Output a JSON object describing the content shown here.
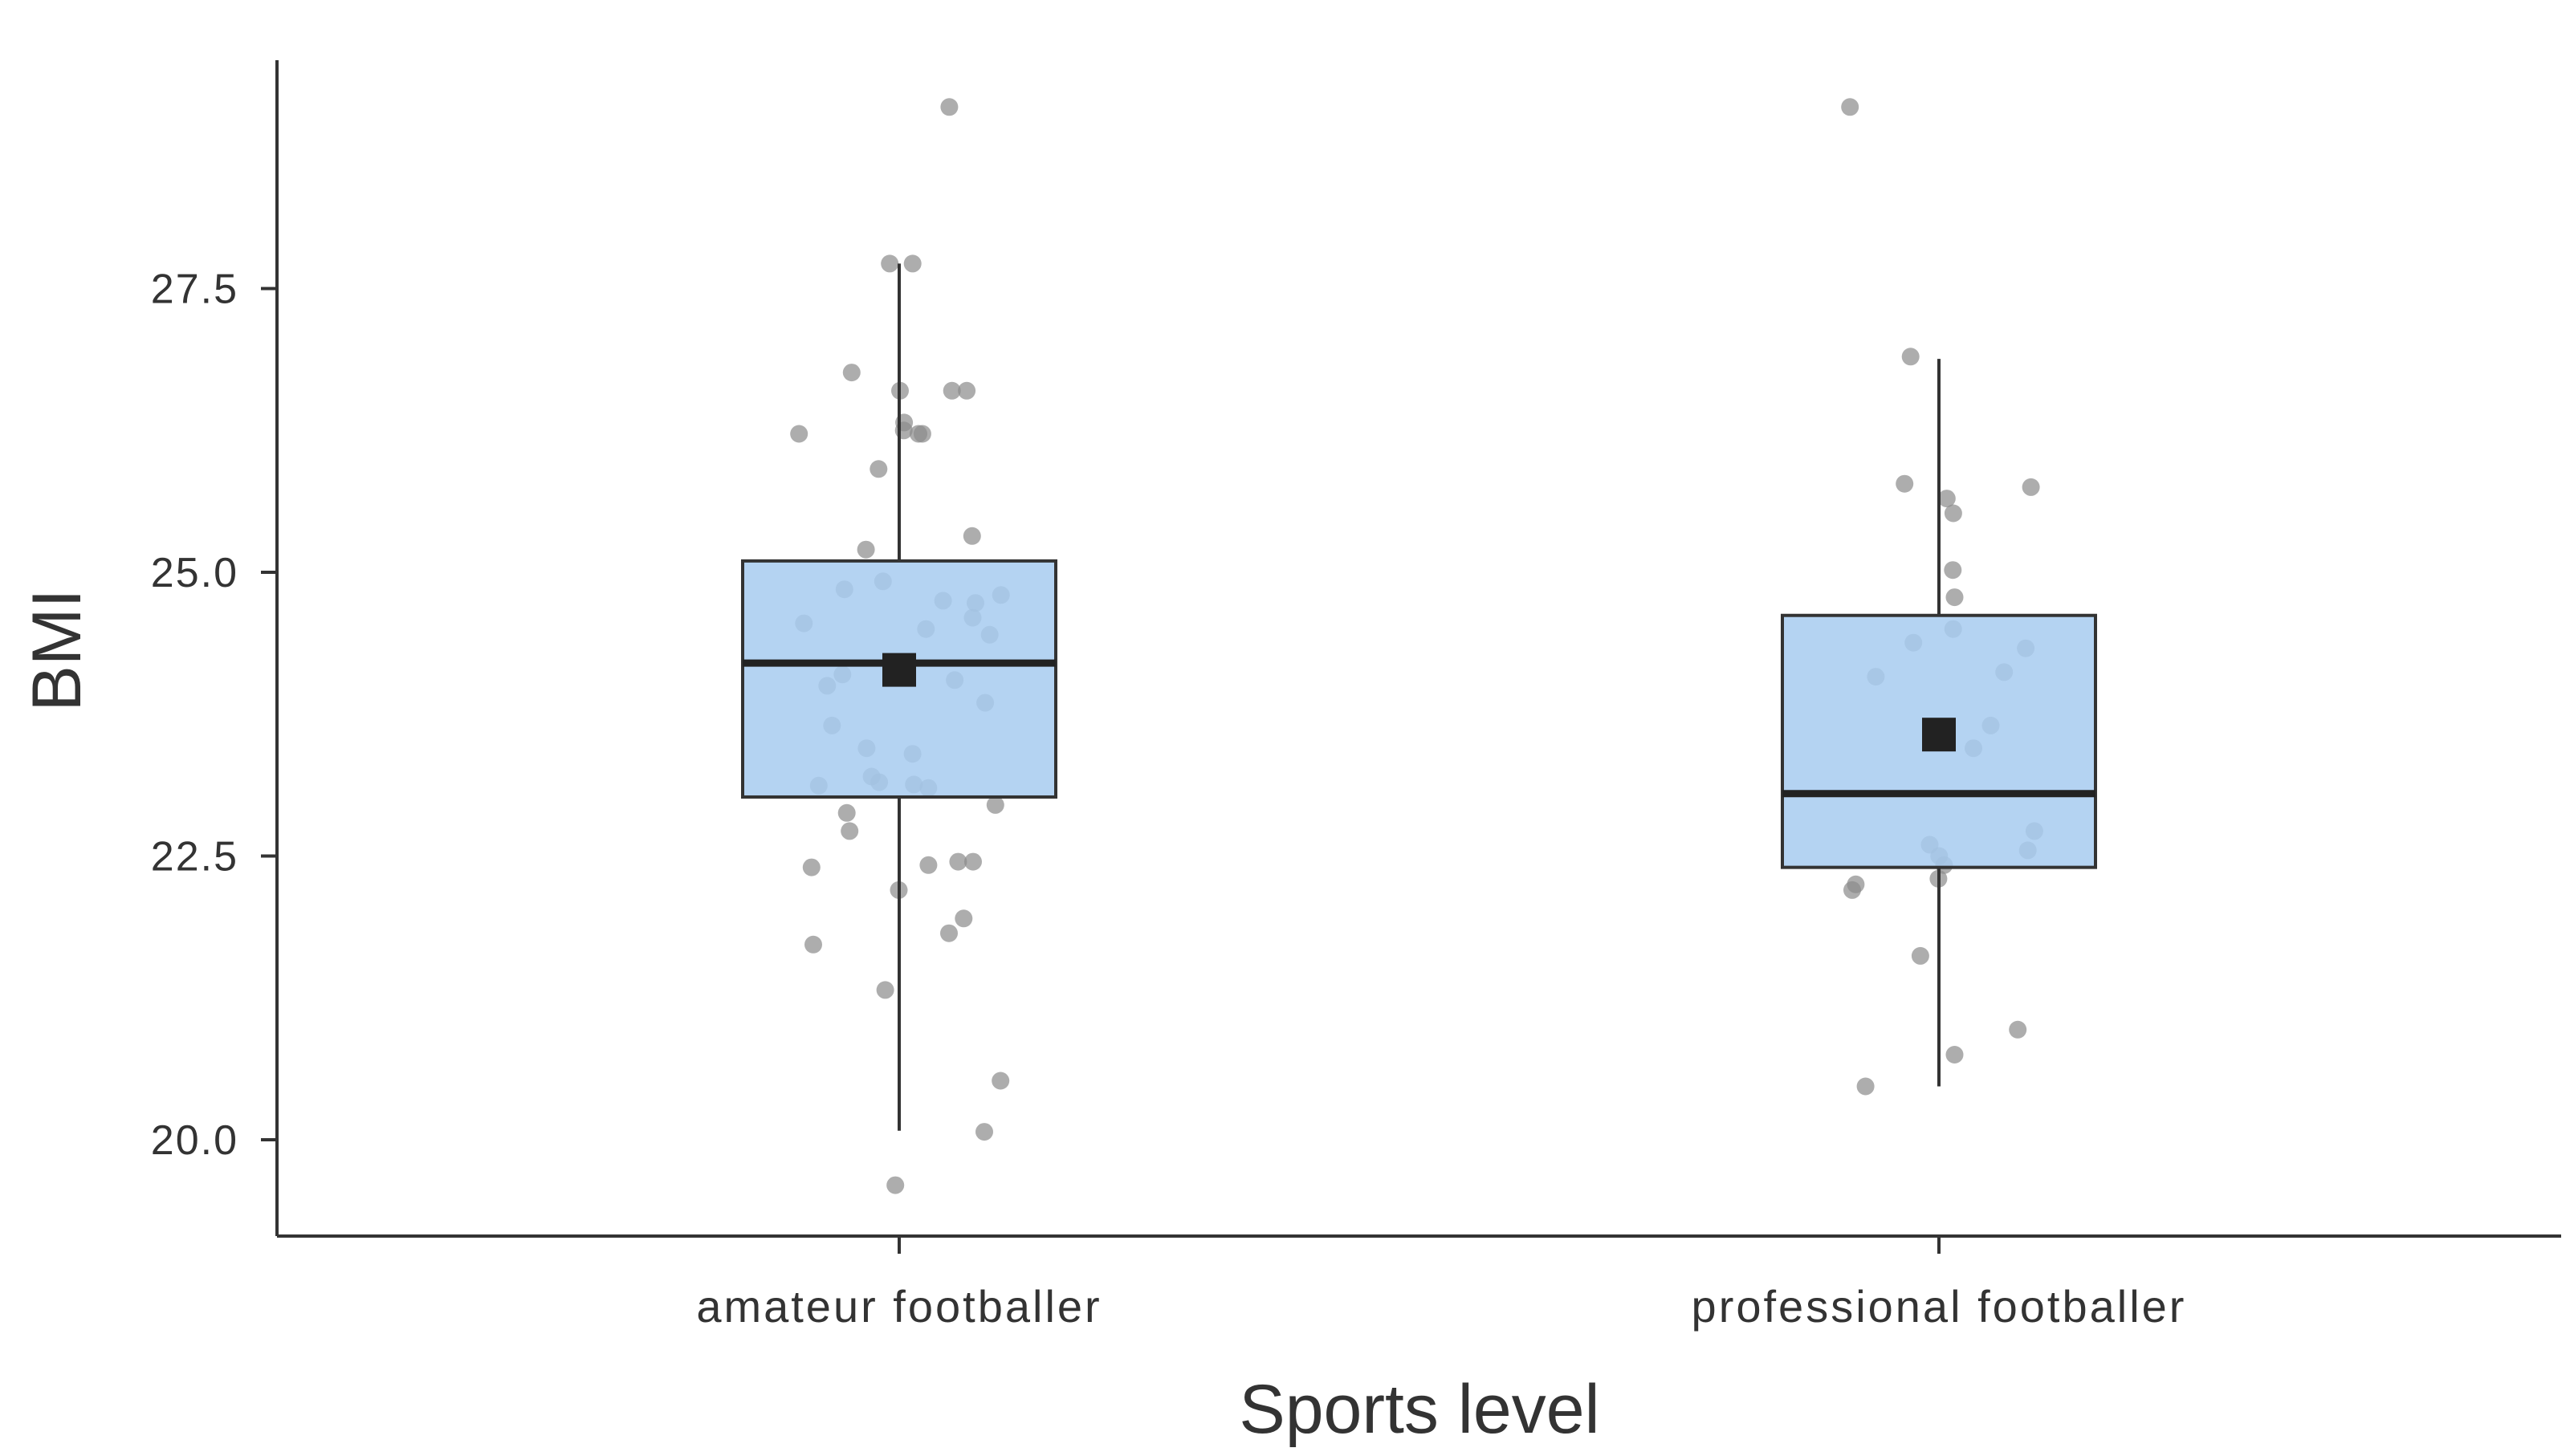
{
  "chart_data": {
    "type": "box",
    "xlabel": "Sports level",
    "ylabel": "BMI",
    "ylim": [
      19.6,
      29.4
    ],
    "yticks": [
      20.0,
      22.5,
      25.0,
      27.5
    ],
    "ytick_labels": [
      "20.0",
      "22.5",
      "25.0",
      "27.5"
    ],
    "categories": [
      "amateur footballer",
      "professional footballer"
    ],
    "grid": false,
    "legend": "none",
    "colors": {
      "box_fill": "#a7cbf0",
      "box_stroke": "#333333",
      "median": "#222222",
      "mean_marker": "#222222",
      "points": "#8a8a8a",
      "axis": "#333333"
    },
    "boxes": [
      {
        "category": "amateur footballer",
        "whisker_low": 20.08,
        "q1": 23.02,
        "median": 24.2,
        "q3": 25.1,
        "whisker_high": 27.72,
        "mean": 24.14
      },
      {
        "category": "professional footballer",
        "whisker_low": 20.47,
        "q1": 22.4,
        "median": 23.05,
        "q3": 24.62,
        "whisker_high": 26.88,
        "mean": 23.57
      }
    ],
    "points": [
      {
        "category": "amateur footballer",
        "values": [
          29.1,
          27.72,
          27.72,
          26.76,
          26.6,
          26.6,
          26.6,
          26.32,
          26.25,
          26.22,
          26.22,
          26.22,
          25.91,
          25.32,
          25.2,
          24.92,
          24.85,
          24.8,
          24.75,
          24.73,
          24.6,
          24.55,
          24.5,
          24.45,
          24.1,
          24.05,
          24.0,
          23.85,
          23.65,
          23.45,
          23.4,
          23.2,
          23.15,
          23.13,
          23.12,
          23.1,
          22.95,
          22.88,
          22.72,
          22.45,
          22.45,
          22.42,
          22.4,
          22.2,
          21.95,
          21.82,
          21.72,
          21.32,
          20.52,
          20.07,
          19.6
        ]
      },
      {
        "category": "professional footballer",
        "values": [
          29.1,
          26.9,
          25.78,
          25.75,
          25.65,
          25.52,
          25.02,
          24.78,
          24.5,
          24.38,
          24.33,
          24.12,
          24.08,
          23.65,
          23.45,
          22.72,
          22.6,
          22.55,
          22.5,
          22.42,
          22.3,
          22.25,
          22.2,
          21.62,
          20.97,
          20.75,
          20.47
        ]
      }
    ]
  }
}
